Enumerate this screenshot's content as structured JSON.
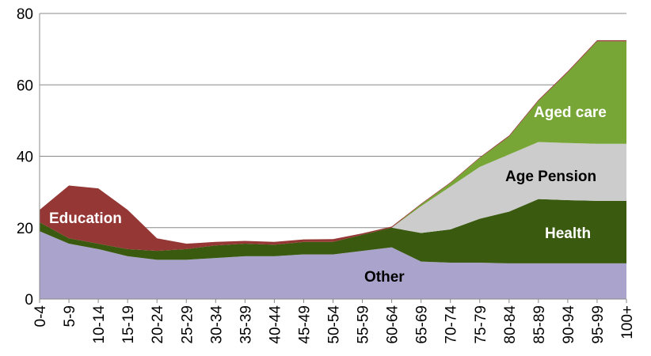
{
  "chart_data": {
    "type": "area",
    "stacked": true,
    "categories": [
      "0-4",
      "5-9",
      "10-14",
      "15-19",
      "20-24",
      "25-29",
      "30-34",
      "35-39",
      "40-44",
      "45-49",
      "50-54",
      "55-59",
      "60-64",
      "65-69",
      "70-74",
      "75-79",
      "80-84",
      "85-89",
      "90-94",
      "95-99",
      "100+"
    ],
    "ylim": [
      0,
      80
    ],
    "yticks": [
      "0",
      "20",
      "40",
      "60",
      "80"
    ],
    "grid": true,
    "series": [
      {
        "name": "Other",
        "color": "#aaa4cc",
        "values": [
          19,
          15.5,
          14,
          12,
          11,
          11,
          11.5,
          12,
          12,
          12.5,
          12.5,
          13.5,
          14.5,
          10.5,
          10.2,
          10.2,
          10,
          10,
          10,
          10,
          10
        ]
      },
      {
        "name": "Health",
        "color": "#3a5a10",
        "values": [
          2.5,
          1.5,
          1.5,
          2,
          2.5,
          3,
          3.5,
          3.5,
          3.2,
          3.5,
          3.5,
          4.5,
          5.5,
          8,
          9.3,
          12.3,
          14.5,
          18,
          17.7,
          17.5,
          17.5
        ]
      },
      {
        "name": "Age Pension",
        "color": "#cccccc",
        "values": [
          0,
          0,
          0,
          0,
          0,
          0,
          0,
          0,
          0,
          0,
          0,
          0,
          0,
          7.5,
          12,
          14.5,
          16,
          16,
          16,
          16,
          16
        ]
      },
      {
        "name": "Aged care",
        "color": "#77a637",
        "values": [
          0,
          0,
          0,
          0,
          0,
          0,
          0,
          0,
          0,
          0,
          0,
          0,
          0,
          0.5,
          1,
          2.5,
          5,
          11.5,
          19.8,
          28.7,
          28.7
        ]
      },
      {
        "name": "Education",
        "color": "#953735",
        "values": [
          3.5,
          14.8,
          15.5,
          11,
          3.5,
          1.5,
          1,
          0.8,
          0.8,
          0.7,
          0.8,
          0.4,
          0.3,
          0.2,
          0.2,
          0.2,
          0.3,
          0.3,
          0.3,
          0.3,
          0.3
        ]
      }
    ]
  }
}
